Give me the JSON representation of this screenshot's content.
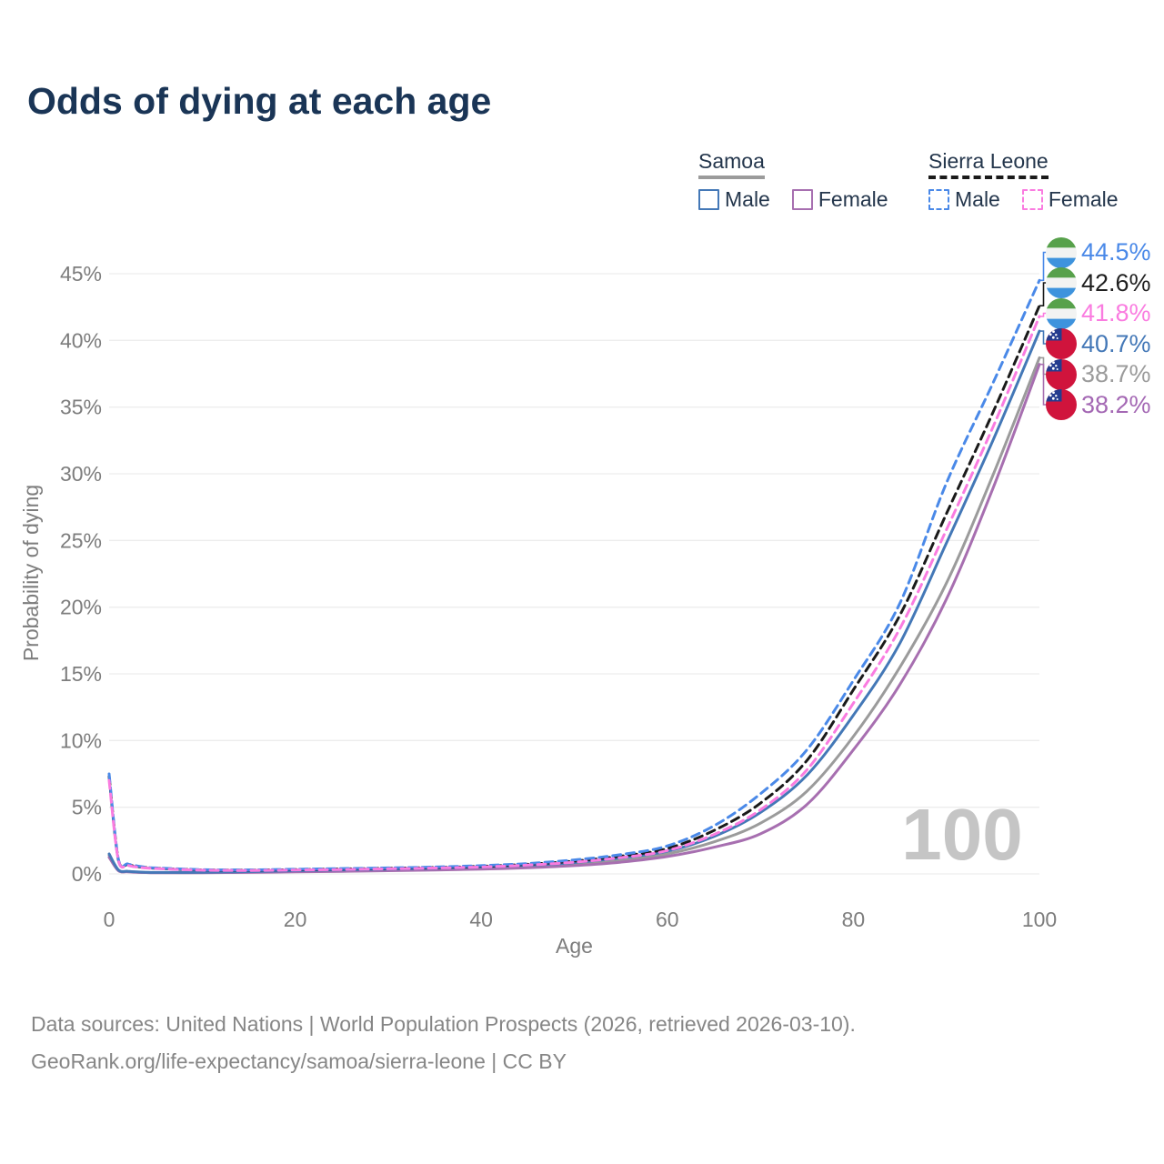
{
  "title": "Odds of dying at each age",
  "watermark": "100",
  "legend": {
    "groups": [
      {
        "name": "Samoa",
        "underline_style": "solid",
        "underline_color": "#9b9b9b",
        "items": [
          {
            "label": "Male",
            "color": "#4478b7",
            "dashed": false
          },
          {
            "label": "Female",
            "color": "#a76fb0",
            "dashed": false
          }
        ]
      },
      {
        "name": "Sierra Leone",
        "underline_style": "dashed",
        "underline_color": "#1a1a1a",
        "items": [
          {
            "label": "Male",
            "color": "#4a89e8",
            "dashed": true
          },
          {
            "label": "Female",
            "color": "#fa7ce0",
            "dashed": true
          }
        ]
      }
    ]
  },
  "axes": {
    "x_label": "Age",
    "y_label": "Probability of dying",
    "x_ticks": [
      {
        "value": 0,
        "label": "0"
      },
      {
        "value": 20,
        "label": "20"
      },
      {
        "value": 40,
        "label": "40"
      },
      {
        "value": 60,
        "label": "60"
      },
      {
        "value": 80,
        "label": "80"
      },
      {
        "value": 100,
        "label": "100"
      }
    ],
    "y_ticks": [
      {
        "value": 0,
        "label": "0%"
      },
      {
        "value": 5,
        "label": "5%"
      },
      {
        "value": 10,
        "label": "10%"
      },
      {
        "value": 15,
        "label": "15%"
      },
      {
        "value": 20,
        "label": "20%"
      },
      {
        "value": 25,
        "label": "25%"
      },
      {
        "value": 30,
        "label": "30%"
      },
      {
        "value": 35,
        "label": "35%"
      },
      {
        "value": 40,
        "label": "40%"
      },
      {
        "value": 45,
        "label": "45%"
      }
    ]
  },
  "end_labels": [
    {
      "value": "44.5%",
      "flag": "sierra-leone",
      "color": "#4a89e8"
    },
    {
      "value": "42.6%",
      "flag": "sierra-leone",
      "color": "#1f1f1f"
    },
    {
      "value": "41.8%",
      "flag": "sierra-leone",
      "color": "#fa7ce0"
    },
    {
      "value": "40.7%",
      "flag": "samoa",
      "color": "#4478b7"
    },
    {
      "value": "38.7%",
      "flag": "samoa",
      "color": "#9b9b9b"
    },
    {
      "value": "38.2%",
      "flag": "samoa",
      "color": "#a468b4"
    }
  ],
  "footer": {
    "line1": "Data sources: United Nations | World Population Prospects (2026, retrieved 2026-03-10).",
    "line2": "GeoRank.org/life-expectancy/samoa/sierra-leone | CC BY"
  },
  "chart_data": {
    "type": "line",
    "title": "Odds of dying at each age",
    "xlabel": "Age",
    "ylabel": "Probability of dying",
    "x_range": [
      0,
      100
    ],
    "y_range_percent": [
      0,
      45
    ],
    "grid": true,
    "legend_position": "top-right",
    "ages": [
      0,
      1,
      2,
      3,
      4,
      5,
      10,
      15,
      20,
      25,
      30,
      35,
      40,
      45,
      50,
      55,
      60,
      65,
      70,
      75,
      80,
      85,
      90,
      95,
      100
    ],
    "series": [
      {
        "name": "Sierra Leone Male",
        "country": "Sierra Leone",
        "sex": "Male",
        "color": "#4a89e8",
        "dashed": true,
        "end_value": 44.5,
        "end_label": "44.5%",
        "values": [
          7.5,
          1.1,
          0.75,
          0.6,
          0.5,
          0.45,
          0.32,
          0.3,
          0.35,
          0.4,
          0.45,
          0.52,
          0.62,
          0.78,
          1.05,
          1.45,
          2.1,
          3.6,
          6.0,
          9.3,
          14.5,
          20.3,
          29.3,
          36.8,
          44.5
        ]
      },
      {
        "name": "Sierra Leone",
        "country": "Sierra Leone",
        "sex": "Both",
        "color": "#1a1a1a",
        "dashed": true,
        "end_value": 42.6,
        "end_label": "42.6%",
        "values": [
          7.3,
          1.05,
          0.7,
          0.56,
          0.47,
          0.42,
          0.3,
          0.28,
          0.32,
          0.37,
          0.42,
          0.48,
          0.57,
          0.72,
          0.96,
          1.33,
          1.9,
          3.25,
          5.3,
          8.5,
          13.8,
          19.4,
          27.0,
          34.6,
          42.6
        ]
      },
      {
        "name": "Sierra Leone Female",
        "country": "Sierra Leone",
        "sex": "Female",
        "color": "#fa7ce0",
        "dashed": true,
        "end_value": 41.8,
        "end_label": "41.8%",
        "values": [
          7.0,
          1.0,
          0.65,
          0.52,
          0.44,
          0.4,
          0.28,
          0.26,
          0.29,
          0.33,
          0.38,
          0.44,
          0.52,
          0.66,
          0.88,
          1.22,
          1.75,
          2.95,
          4.8,
          7.8,
          12.8,
          18.4,
          25.8,
          33.5,
          41.8
        ]
      },
      {
        "name": "Samoa Male",
        "country": "Samoa",
        "sex": "Male",
        "color": "#4478b7",
        "dashed": false,
        "end_value": 40.7,
        "end_label": "40.7%",
        "values": [
          1.5,
          0.3,
          0.2,
          0.15,
          0.12,
          0.11,
          0.12,
          0.17,
          0.24,
          0.3,
          0.36,
          0.43,
          0.52,
          0.65,
          0.85,
          1.2,
          1.7,
          2.8,
          4.6,
          7.4,
          11.9,
          17.3,
          24.8,
          32.5,
          40.7
        ]
      },
      {
        "name": "Samoa",
        "country": "Samoa",
        "sex": "Both",
        "color": "#9b9b9b",
        "dashed": false,
        "end_value": 38.7,
        "end_label": "38.7%",
        "values": [
          1.4,
          0.27,
          0.18,
          0.13,
          0.11,
          0.1,
          0.1,
          0.14,
          0.2,
          0.25,
          0.3,
          0.36,
          0.44,
          0.55,
          0.73,
          1.0,
          1.5,
          2.4,
          3.8,
          6.2,
          10.3,
          15.5,
          21.8,
          29.9,
          38.7
        ]
      },
      {
        "name": "Samoa Female",
        "country": "Samoa",
        "sex": "Female",
        "color": "#a76fb0",
        "dashed": false,
        "end_value": 38.2,
        "end_label": "38.2%",
        "values": [
          1.25,
          0.24,
          0.16,
          0.12,
          0.1,
          0.09,
          0.09,
          0.11,
          0.15,
          0.19,
          0.24,
          0.29,
          0.36,
          0.46,
          0.62,
          0.88,
          1.3,
          2.0,
          3.0,
          5.2,
          9.3,
          14.2,
          20.6,
          28.9,
          38.2
        ]
      }
    ]
  }
}
